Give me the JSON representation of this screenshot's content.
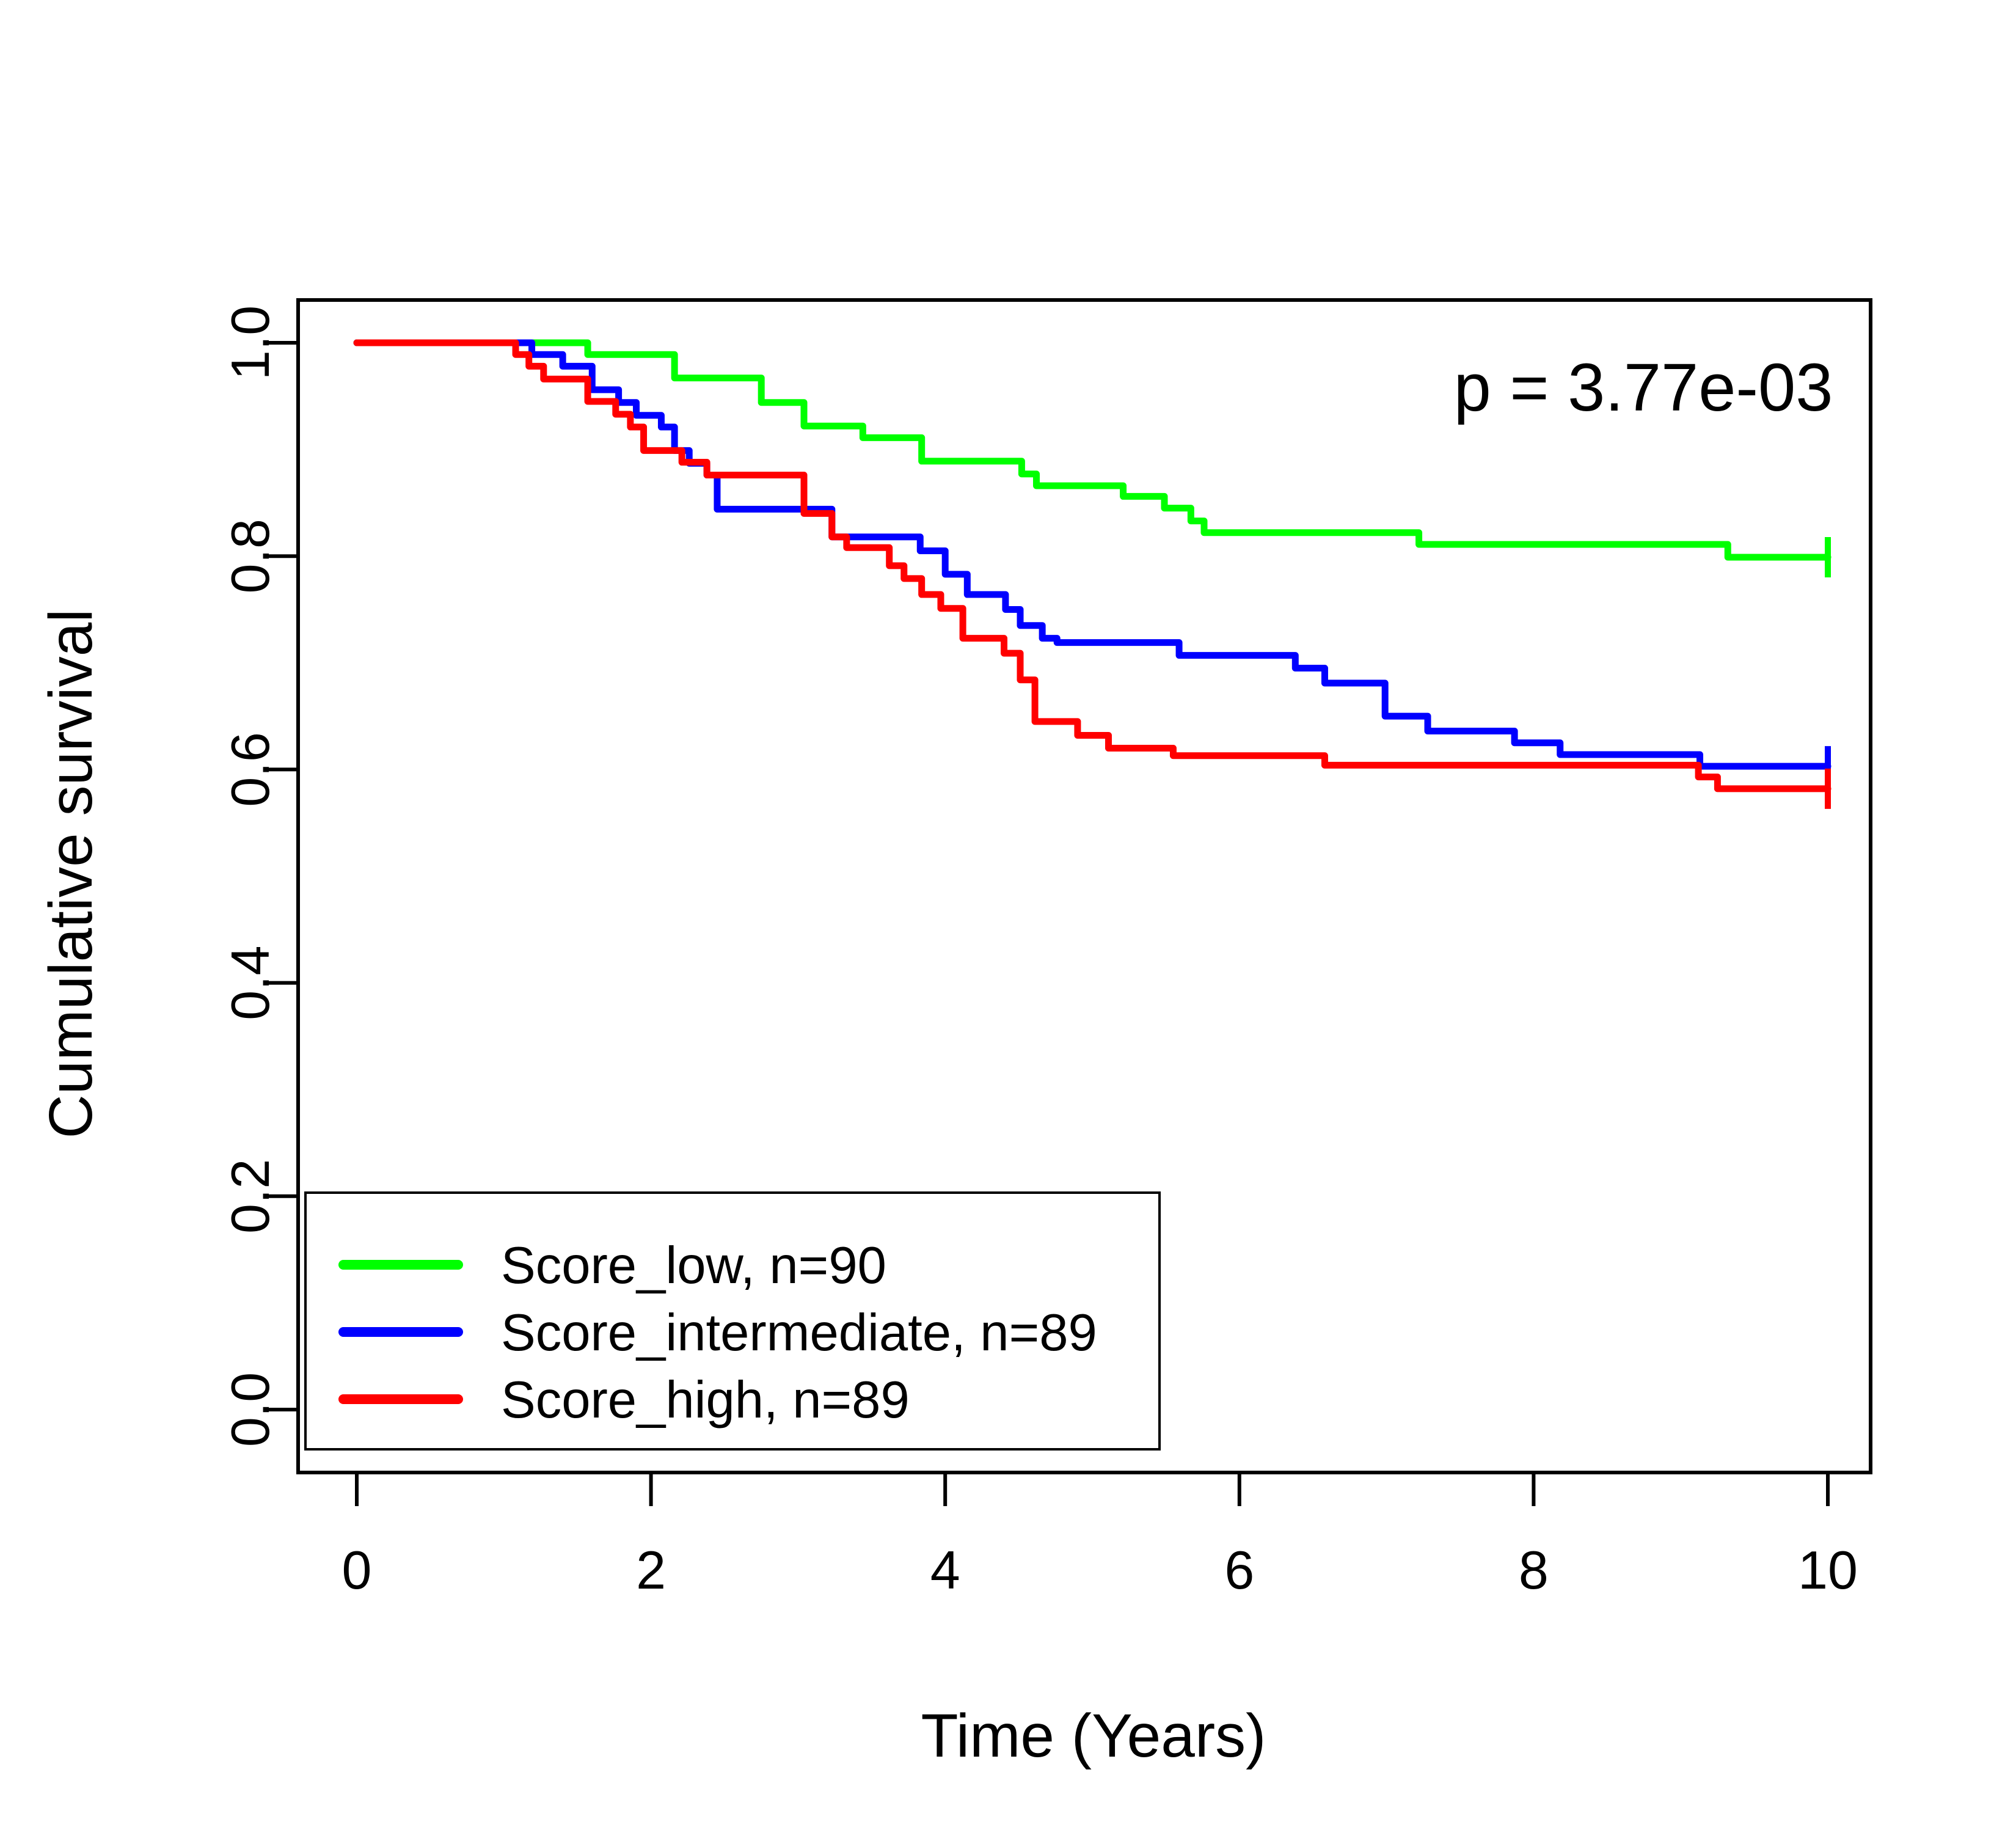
{
  "figure": {
    "background_color": "#FFFFFF",
    "axis_color": "#000000"
  },
  "chart_data": {
    "type": "line",
    "subtype": "kaplan-meier-step-curves",
    "title": "",
    "xlabel": "Time (Years)",
    "ylabel": "Cumulative survival",
    "xlim": [
      0,
      10
    ],
    "ylim": [
      0,
      1
    ],
    "x_ticks": [
      0,
      2,
      4,
      6,
      8,
      10
    ],
    "y_ticks": [
      "0.0",
      "0.2",
      "0.4",
      "0.6",
      "0.8",
      "1.0"
    ],
    "grid": false,
    "legend_position": "bottom-left",
    "annotation": {
      "text": "p = 3.77e-03"
    },
    "series": [
      {
        "name": "Score_low, n=90",
        "color": "#00FF00",
        "start": [
          0,
          1.0
        ],
        "end_time": 10,
        "censor_tick_at_end": true,
        "steps": [
          [
            1.57,
            0.989
          ],
          [
            2.16,
            0.967
          ],
          [
            2.75,
            0.944
          ],
          [
            3.04,
            0.922
          ],
          [
            3.44,
            0.911
          ],
          [
            3.84,
            0.889
          ],
          [
            4.52,
            0.877
          ],
          [
            4.62,
            0.866
          ],
          [
            5.21,
            0.856
          ],
          [
            5.49,
            0.845
          ],
          [
            5.67,
            0.833
          ],
          [
            5.76,
            0.822
          ],
          [
            7.22,
            0.811
          ],
          [
            9.32,
            0.799
          ]
        ]
      },
      {
        "name": "Score_intermediate, n=89",
        "color": "#0000FF",
        "start": [
          0,
          1.0
        ],
        "end_time": 10,
        "censor_tick_at_end": true,
        "steps": [
          [
            1.19,
            0.989
          ],
          [
            1.4,
            0.978
          ],
          [
            1.6,
            0.956
          ],
          [
            1.78,
            0.944
          ],
          [
            1.9,
            0.932
          ],
          [
            2.07,
            0.921
          ],
          [
            2.16,
            0.899
          ],
          [
            2.26,
            0.887
          ],
          [
            2.38,
            0.876
          ],
          [
            2.45,
            0.844
          ],
          [
            3.23,
            0.818
          ],
          [
            3.83,
            0.805
          ],
          [
            4.0,
            0.783
          ],
          [
            4.15,
            0.764
          ],
          [
            4.41,
            0.75
          ],
          [
            4.51,
            0.735
          ],
          [
            4.66,
            0.723
          ],
          [
            4.76,
            0.719
          ],
          [
            5.59,
            0.707
          ],
          [
            6.38,
            0.695
          ],
          [
            6.58,
            0.681
          ],
          [
            6.99,
            0.65
          ],
          [
            7.28,
            0.636
          ],
          [
            7.87,
            0.625
          ],
          [
            8.18,
            0.614
          ],
          [
            9.13,
            0.603
          ]
        ]
      },
      {
        "name": "Score_high, n=89",
        "color": "#FF0000",
        "start": [
          0,
          1.0
        ],
        "end_time": 10,
        "censor_tick_at_end": true,
        "steps": [
          [
            1.08,
            0.989
          ],
          [
            1.17,
            0.978
          ],
          [
            1.27,
            0.966
          ],
          [
            1.57,
            0.945
          ],
          [
            1.76,
            0.933
          ],
          [
            1.86,
            0.921
          ],
          [
            1.95,
            0.899
          ],
          [
            2.21,
            0.888
          ],
          [
            2.38,
            0.876
          ],
          [
            3.04,
            0.84
          ],
          [
            3.23,
            0.818
          ],
          [
            3.33,
            0.808
          ],
          [
            3.62,
            0.791
          ],
          [
            3.72,
            0.779
          ],
          [
            3.84,
            0.764
          ],
          [
            3.97,
            0.751
          ],
          [
            4.12,
            0.723
          ],
          [
            4.4,
            0.709
          ],
          [
            4.51,
            0.684
          ],
          [
            4.61,
            0.645
          ],
          [
            4.9,
            0.632
          ],
          [
            5.11,
            0.62
          ],
          [
            5.55,
            0.613
          ],
          [
            6.58,
            0.604
          ],
          [
            9.12,
            0.593
          ],
          [
            9.25,
            0.582
          ]
        ]
      }
    ]
  }
}
